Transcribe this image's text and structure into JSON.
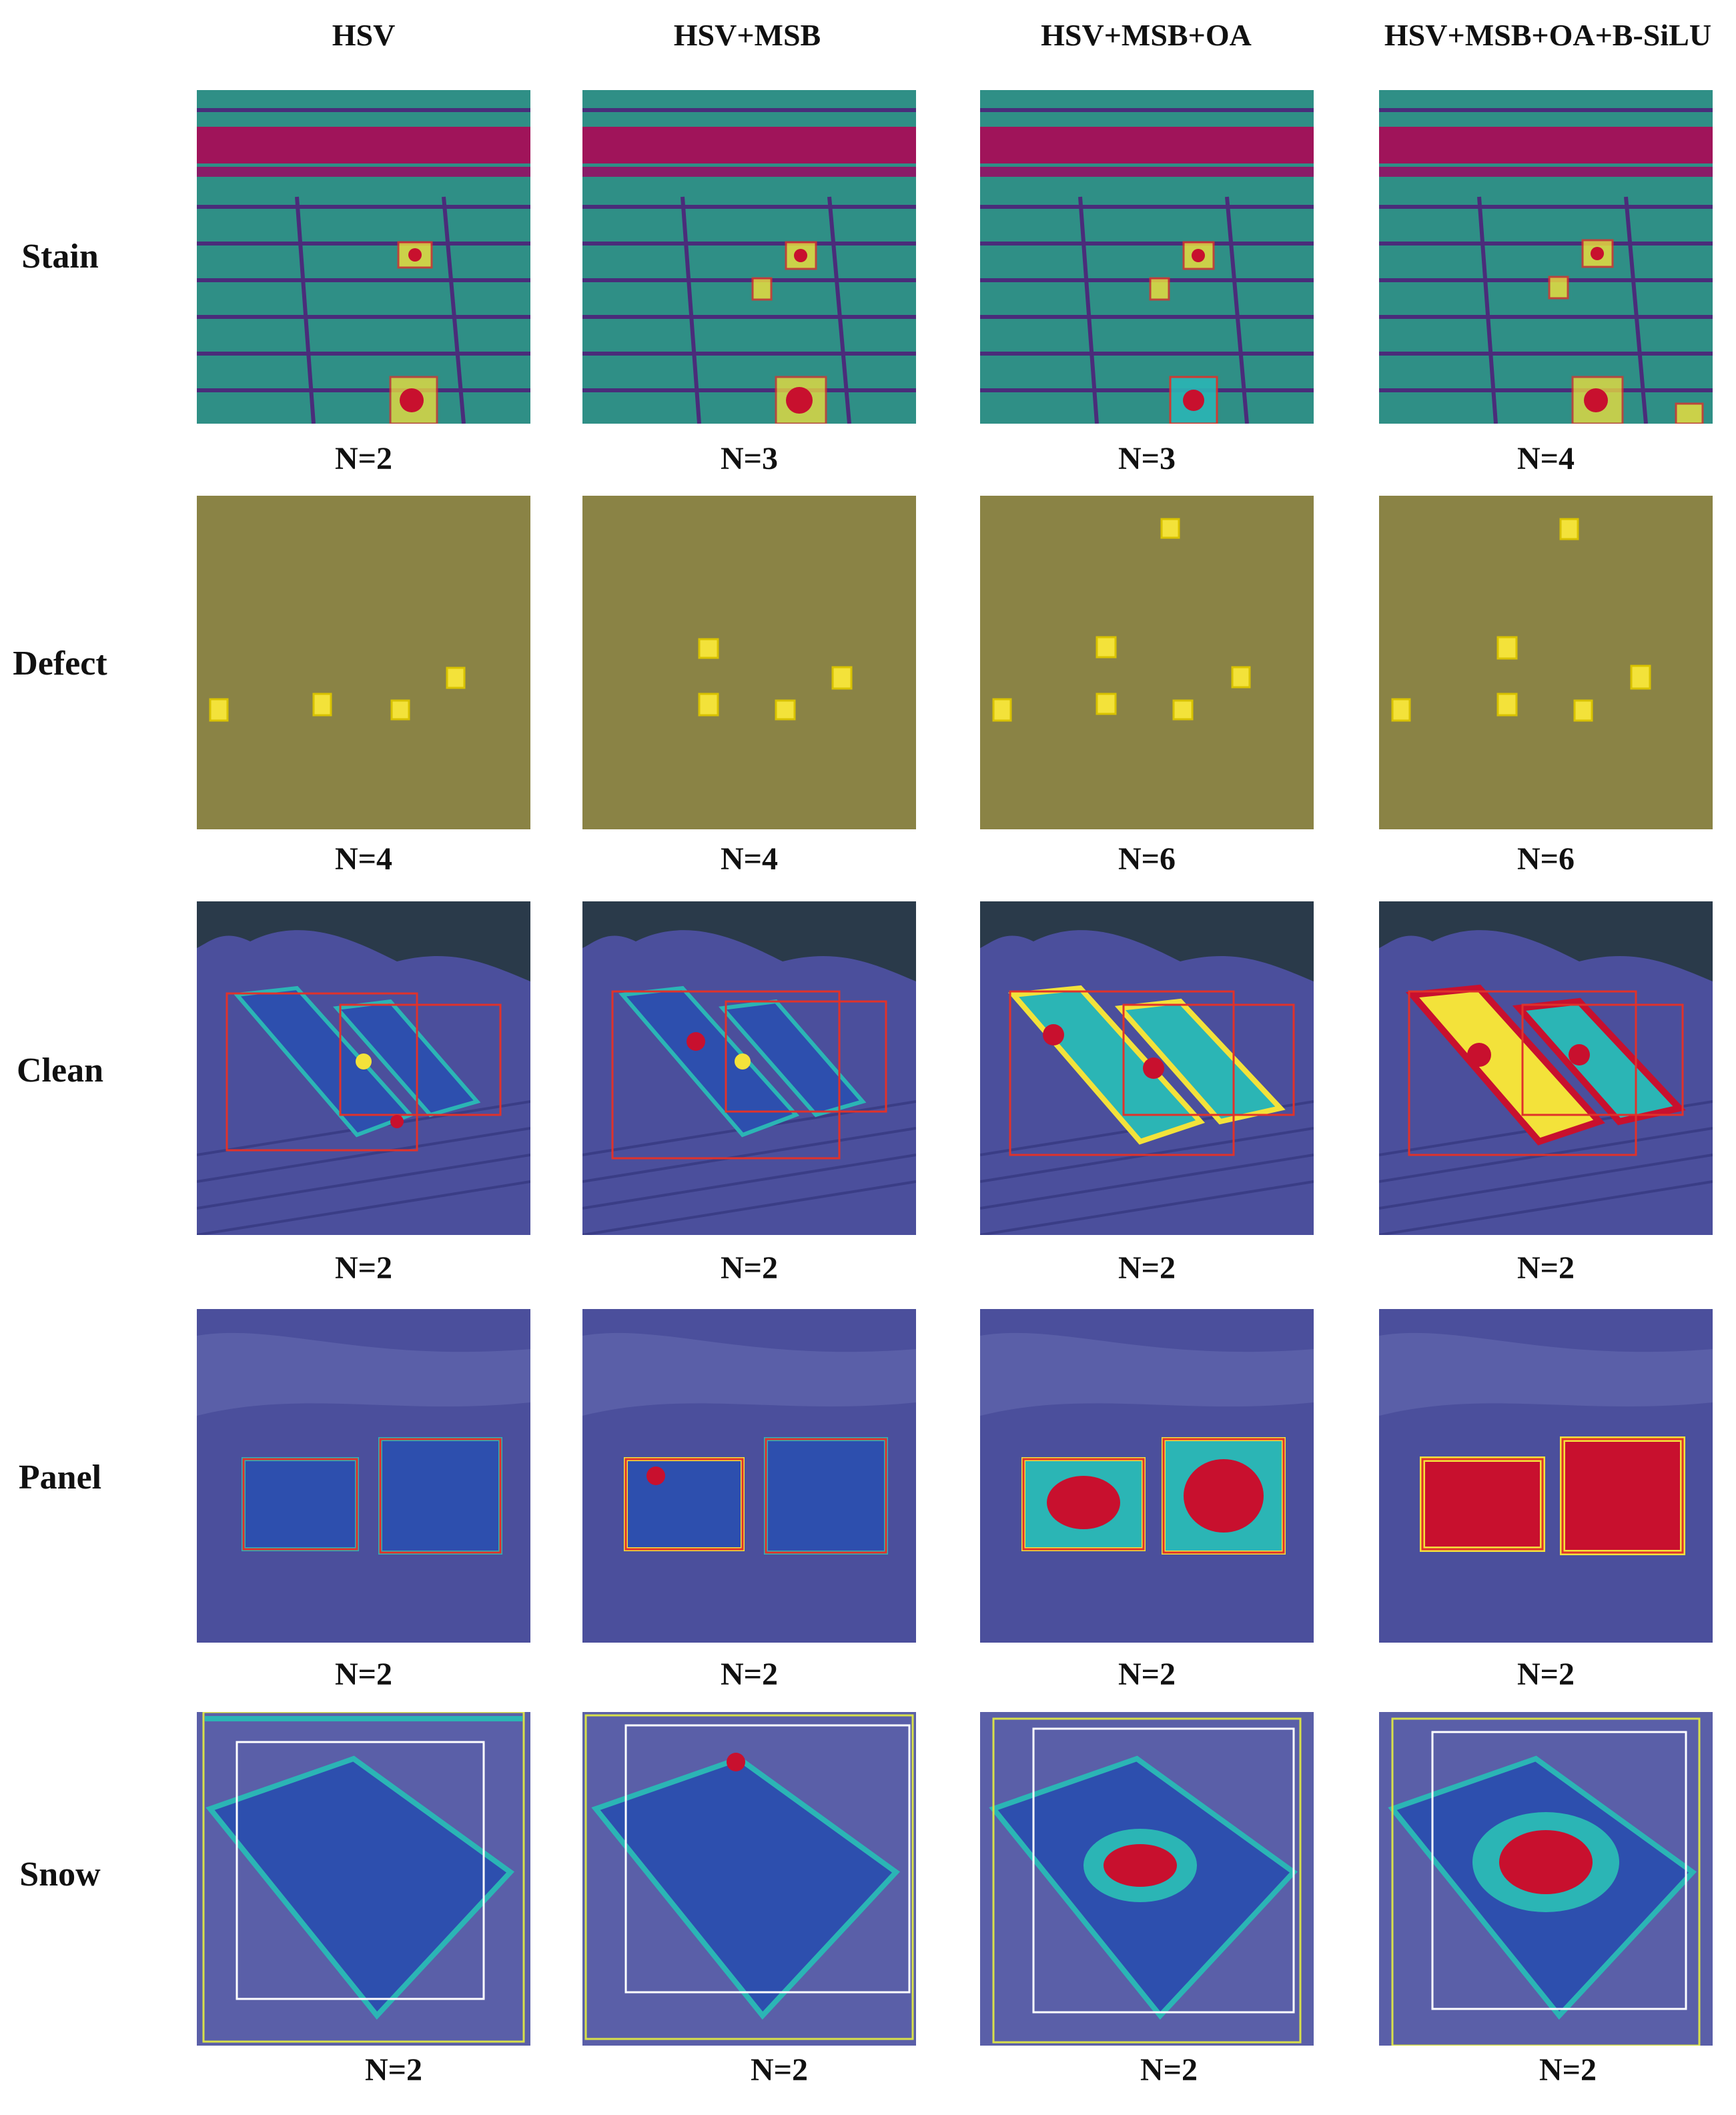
{
  "columns": [
    "HSV",
    "HSV+MSB",
    "HSV+MSB+OA",
    "HSV+MSB+OA+B-SiLU"
  ],
  "rows": [
    {
      "label": "Stain",
      "counts": [
        "N=2",
        "N=3",
        "N=3",
        "N=4"
      ]
    },
    {
      "label": "Defect",
      "counts": [
        "N=4",
        "N=4",
        "N=6",
        "N=6"
      ]
    },
    {
      "label": "Clean",
      "counts": [
        "N=2",
        "N=2",
        "N=2",
        "N=2"
      ]
    },
    {
      "label": "Panel",
      "counts": [
        "N=2",
        "N=2",
        "N=2",
        "N=2"
      ]
    },
    {
      "label": "Snow",
      "counts": [
        "N=2",
        "N=2",
        "N=2",
        "N=2"
      ]
    }
  ],
  "colors": {
    "box": "#e0322a",
    "heat_hot": "#c8102e",
    "heat_warm": "#f3e23a",
    "heat_cool": "#2bb5b5",
    "stain_bg": "#2f8f86",
    "defect_bg": "#8a8345",
    "scene_bg": "#4b4f9c"
  }
}
